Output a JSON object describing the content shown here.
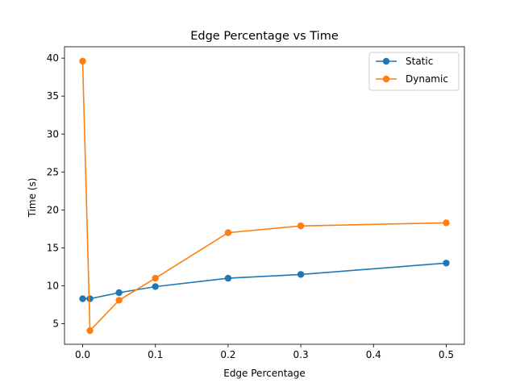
{
  "chart_data": {
    "type": "line",
    "title": "Edge Percentage vs Time",
    "xlabel": "Edge Percentage",
    "ylabel": "Time (s)",
    "xlim": [
      -0.025,
      0.525
    ],
    "ylim": [
      2.3,
      41.5
    ],
    "xticks": [
      0.0,
      0.1,
      0.2,
      0.3,
      0.4,
      0.5
    ],
    "xtick_labels": [
      "0.0",
      "0.1",
      "0.2",
      "0.3",
      "0.4",
      "0.5"
    ],
    "yticks": [
      5,
      10,
      15,
      20,
      25,
      30,
      35,
      40
    ],
    "ytick_labels": [
      "5",
      "10",
      "15",
      "20",
      "25",
      "30",
      "35",
      "40"
    ],
    "grid": false,
    "legend_position": "top-right",
    "x": [
      0.0,
      0.01,
      0.05,
      0.1,
      0.2,
      0.3,
      0.5
    ],
    "series": [
      {
        "name": "Static",
        "color": "#1f77b4",
        "values": [
          8.3,
          8.3,
          9.1,
          9.9,
          11.0,
          11.5,
          13.0
        ]
      },
      {
        "name": "Dynamic",
        "color": "#ff7f0e",
        "values": [
          39.6,
          4.1,
          8.1,
          11.0,
          17.0,
          17.9,
          18.3
        ]
      }
    ]
  }
}
